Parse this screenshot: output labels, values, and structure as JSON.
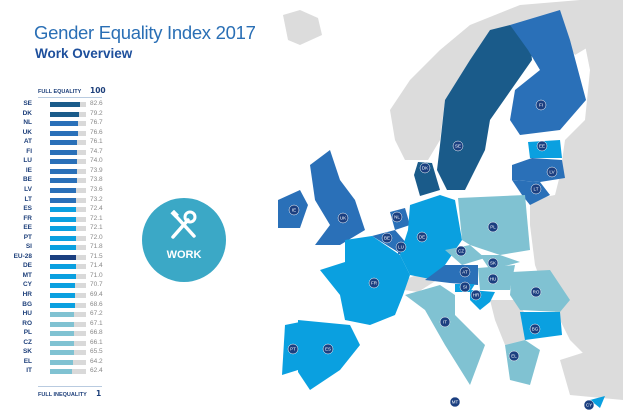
{
  "header": {
    "title": "Gender Equality Index 2017",
    "subtitle": "Work Overview"
  },
  "scale": {
    "top_label": "FULL EQUALITY",
    "top_value": "100",
    "bottom_label": "FULL INEQUALITY",
    "bottom_value": "1"
  },
  "colors": {
    "dark": "#1a5b8a",
    "mid": "#2a70b8",
    "bright": "#0aa0e0",
    "light": "#80c2d2",
    "eu": "#1b3f80",
    "track": "#d9d9d9",
    "grey_land": "#dcdcdc"
  },
  "ranking": [
    {
      "code": "SE",
      "value": 82.6,
      "tier": "dark"
    },
    {
      "code": "DK",
      "value": 79.2,
      "tier": "dark"
    },
    {
      "code": "NL",
      "value": 76.7,
      "tier": "mid"
    },
    {
      "code": "UK",
      "value": 76.6,
      "tier": "mid"
    },
    {
      "code": "AT",
      "value": 76.1,
      "tier": "mid"
    },
    {
      "code": "FI",
      "value": 74.7,
      "tier": "mid"
    },
    {
      "code": "LU",
      "value": 74.0,
      "tier": "mid"
    },
    {
      "code": "IE",
      "value": 73.9,
      "tier": "mid"
    },
    {
      "code": "BE",
      "value": 73.8,
      "tier": "mid"
    },
    {
      "code": "LV",
      "value": 73.6,
      "tier": "mid"
    },
    {
      "code": "LT",
      "value": 73.2,
      "tier": "mid"
    },
    {
      "code": "ES",
      "value": 72.4,
      "tier": "bright"
    },
    {
      "code": "FR",
      "value": 72.1,
      "tier": "bright"
    },
    {
      "code": "EE",
      "value": 72.1,
      "tier": "bright"
    },
    {
      "code": "PT",
      "value": 72.0,
      "tier": "bright"
    },
    {
      "code": "SI",
      "value": 71.8,
      "tier": "bright"
    },
    {
      "code": "EU-28",
      "value": 71.5,
      "tier": "eu"
    },
    {
      "code": "DE",
      "value": 71.4,
      "tier": "bright"
    },
    {
      "code": "MT",
      "value": 71.0,
      "tier": "bright"
    },
    {
      "code": "CY",
      "value": 70.7,
      "tier": "bright"
    },
    {
      "code": "HR",
      "value": 69.4,
      "tier": "bright"
    },
    {
      "code": "BG",
      "value": 68.6,
      "tier": "bright"
    },
    {
      "code": "HU",
      "value": 67.2,
      "tier": "light"
    },
    {
      "code": "RO",
      "value": 67.1,
      "tier": "light"
    },
    {
      "code": "PL",
      "value": 66.8,
      "tier": "light"
    },
    {
      "code": "CZ",
      "value": 66.1,
      "tier": "light"
    },
    {
      "code": "SK",
      "value": 65.5,
      "tier": "light"
    },
    {
      "code": "EL",
      "value": 64.2,
      "tier": "light"
    },
    {
      "code": "IT",
      "value": 62.4,
      "tier": "light"
    }
  ],
  "domain_badge": {
    "label": "WORK",
    "icon": "tools-icon"
  }
}
